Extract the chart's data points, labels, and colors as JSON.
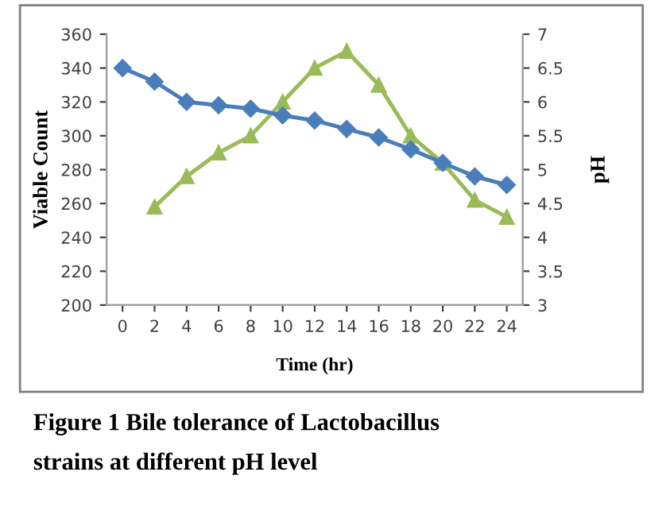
{
  "chart_data": {
    "type": "line",
    "categories": [
      "0",
      "2",
      "4",
      "6",
      "8",
      "10",
      "12",
      "14",
      "16",
      "18",
      "20",
      "22",
      "24"
    ],
    "series": [
      {
        "color": "#4a7ebb",
        "marker": "diamond",
        "values": [
          340,
          332,
          320,
          318,
          316,
          312,
          309,
          304,
          299,
          292,
          284,
          276,
          271
        ]
      },
      {
        "color": "#9bbb59",
        "marker": "triangle",
        "axis": "y2",
        "values": [
          null,
          4.45,
          4.9,
          5.25,
          5.5,
          6.0,
          6.5,
          6.75,
          6.25,
          5.5,
          5.1,
          4.55,
          4.3
        ]
      }
    ],
    "xlabel": "Time (hr)",
    "ylabel": "Viable Count",
    "y2label": "pH",
    "ylim": [
      200,
      360
    ],
    "yticks": [
      200,
      220,
      240,
      260,
      280,
      300,
      320,
      340,
      360
    ],
    "y2lim": [
      3,
      7
    ],
    "y2ticks": [
      3,
      {
        "value": 3.5,
        "label": "3.5"
      },
      4,
      {
        "value": 4.5,
        "label": "4.5"
      },
      5,
      {
        "value": 5.5,
        "label": "5.5"
      },
      6,
      {
        "value": 6.5,
        "label": "6.5"
      },
      7
    ],
    "grid": false,
    "legend": false,
    "annotations": [
      "Figure 1 Bile tolerance of Lactobacillus\nstrains at different pH level"
    ]
  }
}
